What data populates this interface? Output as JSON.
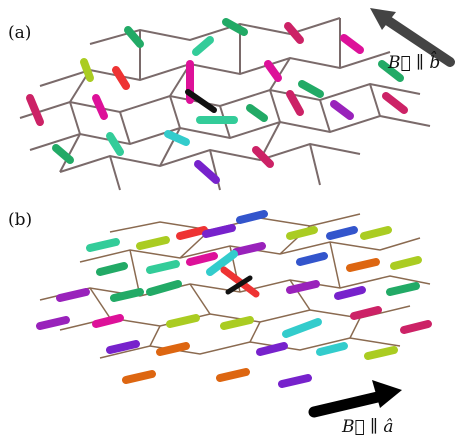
{
  "panels": [
    {
      "label": "(a)",
      "field_label": "B⃗ ∥ b̂",
      "field_color": "#444444"
    },
    {
      "label": "(b)",
      "field_label": "B⃗ ∥ â",
      "field_color": "#000000"
    }
  ],
  "colors": {
    "lattice": "#7a6a6a",
    "spin_palette": [
      "#cc2266",
      "#dd1199",
      "#22aa66",
      "#33cc99",
      "#7722cc",
      "#9922bb",
      "#33cccc",
      "#aacc22",
      "#ee3333",
      "#3355cc",
      "#dd6611",
      "#ee88aa"
    ]
  }
}
